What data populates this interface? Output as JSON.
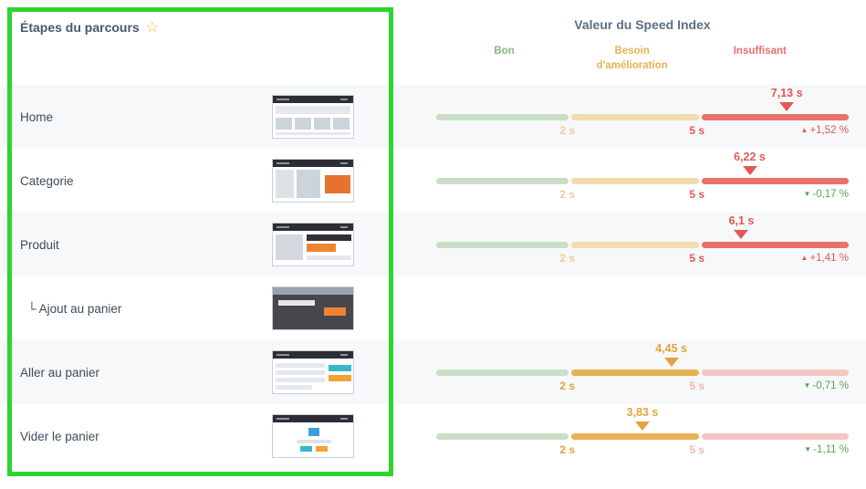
{
  "panel": {
    "title": "Étapes du parcours",
    "star_icon": "☆"
  },
  "chart_header": {
    "title": "Valeur du Speed Index",
    "zones": [
      {
        "label": "Bon",
        "color": "#83b87d"
      },
      {
        "label": "Besoin d'amélioration",
        "color": "#e8b152"
      },
      {
        "label": "Insuffisant",
        "color": "#e8716c"
      }
    ]
  },
  "gauge": {
    "ticks": [
      "2 s",
      "5 s"
    ]
  },
  "colors": {
    "good": "#cadec6",
    "improve": "#e8b152",
    "poor": "#e8716c",
    "annotation": "#2fd32f"
  },
  "rows": [
    {
      "label": "Home",
      "thumb": "home",
      "has_gauge": true,
      "zone": "poor",
      "value": "7,13 s",
      "marker_pct": 85,
      "trend": "+1,52 %",
      "trend_dir": "up",
      "trend_color": "red"
    },
    {
      "label": "Categorie",
      "thumb": "category",
      "has_gauge": true,
      "zone": "poor",
      "value": "6,22 s",
      "marker_pct": 76,
      "trend": "-0,17 %",
      "trend_dir": "down",
      "trend_color": "green"
    },
    {
      "label": "Produit",
      "thumb": "product",
      "has_gauge": true,
      "zone": "poor",
      "value": "6,1 s",
      "marker_pct": 74,
      "trend": "+1,41 %",
      "trend_dir": "up",
      "trend_color": "red"
    },
    {
      "label": "└ Ajout au panier",
      "thumb": "modal",
      "has_gauge": false,
      "indent": true
    },
    {
      "label": "Aller au panier",
      "thumb": "cart",
      "has_gauge": true,
      "zone": "improve",
      "value": "4,45 s",
      "marker_pct": 57,
      "trend": "-0,71 %",
      "trend_dir": "down",
      "trend_color": "green"
    },
    {
      "label": "Vider le panier",
      "thumb": "empty",
      "has_gauge": true,
      "zone": "improve",
      "value": "3,83 s",
      "marker_pct": 50,
      "trend": "-1,11 %",
      "trend_dir": "down",
      "trend_color": "green"
    }
  ]
}
